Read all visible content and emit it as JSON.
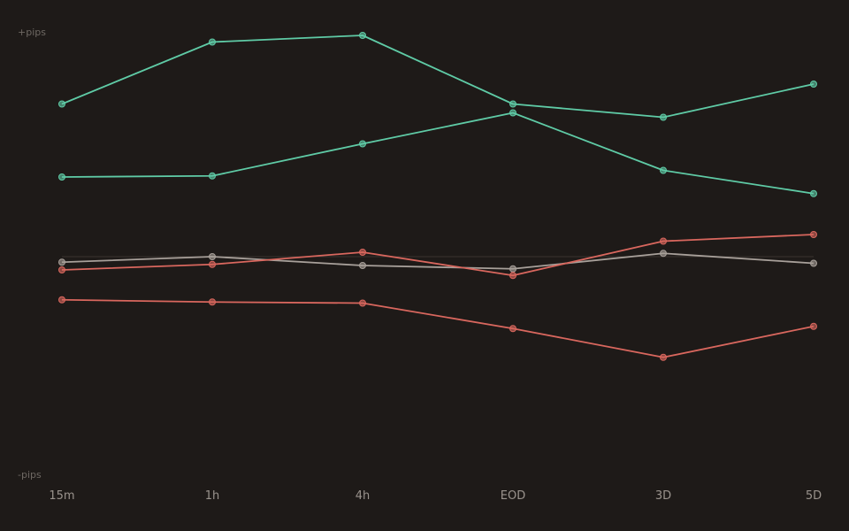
{
  "chart_data": {
    "type": "line",
    "categories": [
      "15m",
      "1h",
      "4h",
      "EOD",
      "3D",
      "5D"
    ],
    "ylabel_top": "+pips",
    "ylabel_bottom": "-pips",
    "ylim": [
      -100,
      100
    ],
    "baseline": 0,
    "grid": false,
    "series": [
      {
        "values": [
          69,
          97,
          100,
          69,
          63,
          78
        ],
        "color": "#5fcba6"
      },
      {
        "values": [
          36,
          36.5,
          51,
          65,
          39,
          28.5
        ],
        "color": "#5fcba6"
      },
      {
        "values": [
          -2.5,
          0,
          -4,
          -5.5,
          1.5,
          -3
        ],
        "color": "#a8a09a"
      },
      {
        "values": [
          -6,
          -3.5,
          2,
          -8.5,
          7,
          10
        ],
        "color": "#d9675e"
      },
      {
        "values": [
          -19.5,
          -20.5,
          -21,
          -32.5,
          -45.5,
          -31.5
        ],
        "color": "#d9675e"
      }
    ]
  }
}
